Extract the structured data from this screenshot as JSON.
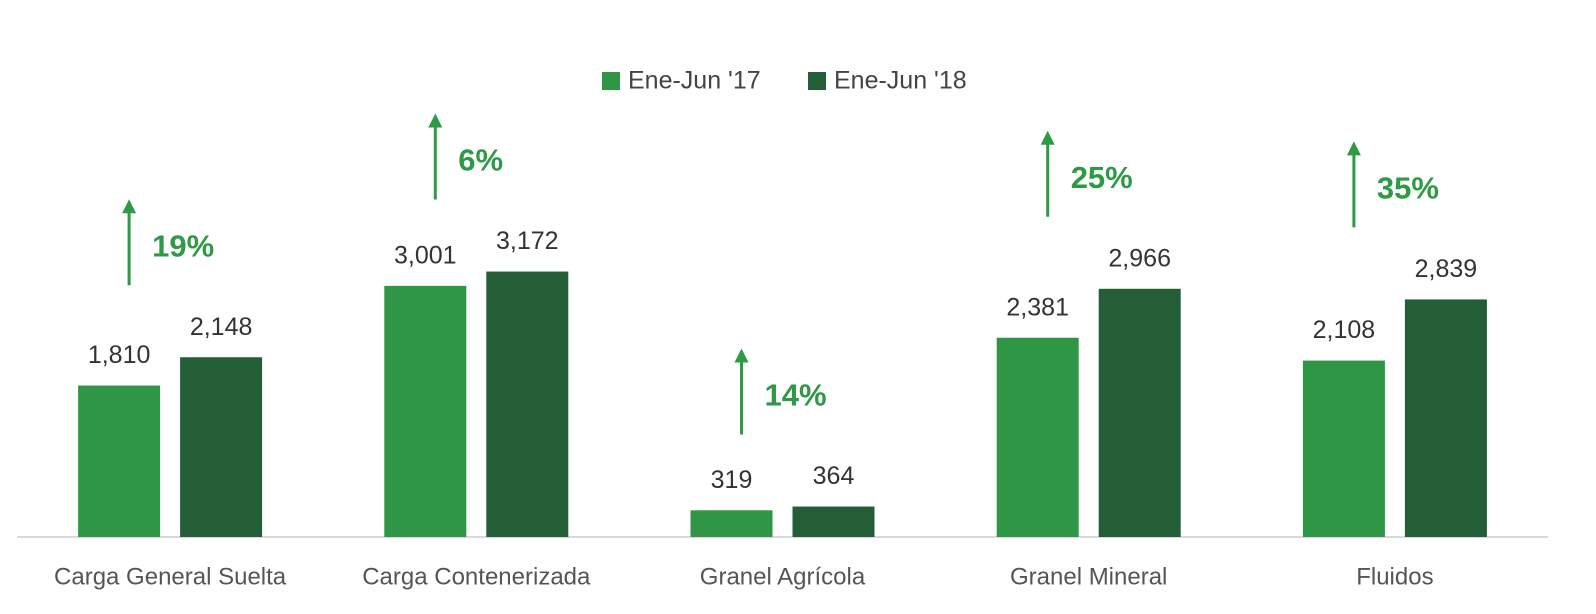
{
  "chart_data": {
    "type": "bar",
    "categories": [
      "Carga General Suelta",
      "Carga Contenerizada",
      "Granel Agrícola",
      "Granel Mineral",
      "Fluidos"
    ],
    "series": [
      {
        "name": "Ene-Jun '17",
        "color": "#2e9645",
        "values": [
          1810,
          3001,
          319,
          2381,
          2108
        ],
        "value_labels": [
          "1,810",
          "3,001",
          "319",
          "2,381",
          "2,108"
        ]
      },
      {
        "name": "Ene-Jun '18",
        "color": "#235e36",
        "values": [
          2148,
          3172,
          364,
          2966,
          2839
        ],
        "value_labels": [
          "2,148",
          "3,172",
          "364",
          "2,966",
          "2,839"
        ]
      }
    ],
    "annotations": [
      "19%",
      "6%",
      "14%",
      "25%",
      "35%"
    ],
    "annotation_color": "#2e9a45",
    "ylim": [
      0,
      3800
    ],
    "legend": "top"
  }
}
